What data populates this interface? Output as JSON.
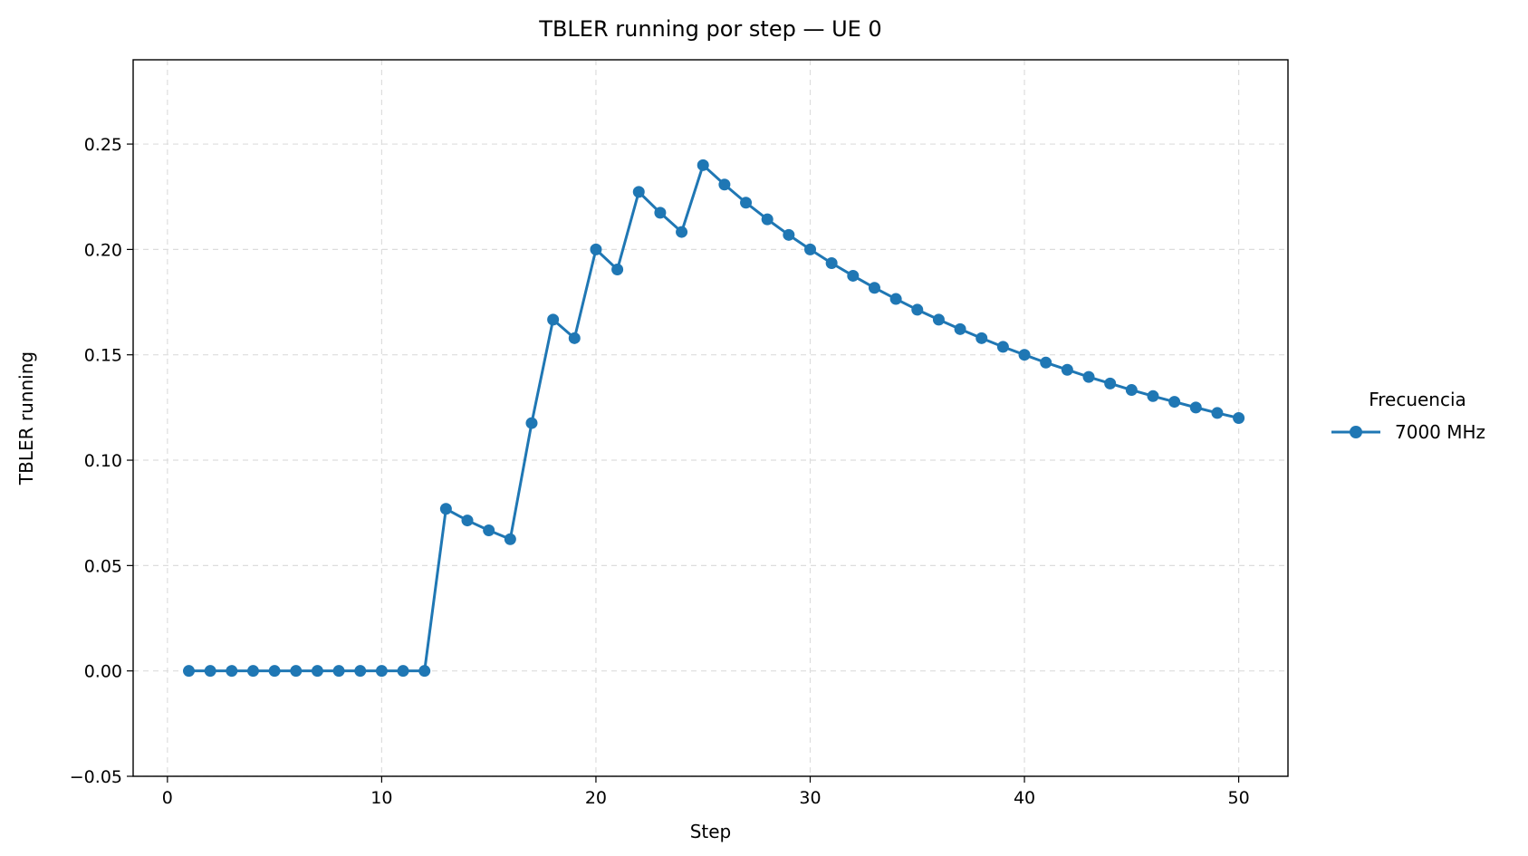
{
  "chart_data": {
    "type": "line",
    "title": "TBLER running por step — UE 0",
    "xlabel": "Step",
    "ylabel": "TBLER running",
    "xlim": [
      -1.6,
      52.3
    ],
    "ylim": [
      -0.05,
      0.29
    ],
    "xticks": [
      0,
      10,
      20,
      30,
      40,
      50
    ],
    "xtick_labels": [
      "0",
      "10",
      "20",
      "30",
      "40",
      "50"
    ],
    "yticks": [
      -0.05,
      0.0,
      0.05,
      0.1,
      0.15,
      0.2,
      0.25
    ],
    "ytick_labels": [
      "−0.05",
      "0.00",
      "0.05",
      "0.10",
      "0.15",
      "0.20",
      "0.25"
    ],
    "grid": true,
    "legend_title": "Frecuencia",
    "legend_position": "right-outside",
    "series": [
      {
        "name": "7000 MHz",
        "color": "#1f77b4",
        "marker": "circle",
        "x": [
          1,
          2,
          3,
          4,
          5,
          6,
          7,
          8,
          9,
          10,
          11,
          12,
          13,
          14,
          15,
          16,
          17,
          18,
          19,
          20,
          21,
          22,
          23,
          24,
          25,
          26,
          27,
          28,
          29,
          30,
          31,
          32,
          33,
          34,
          35,
          36,
          37,
          38,
          39,
          40,
          41,
          42,
          43,
          44,
          45,
          46,
          47,
          48,
          49,
          50
        ],
        "values": [
          0,
          0,
          0,
          0,
          0,
          0,
          0,
          0,
          0,
          0,
          0,
          0,
          0.0769,
          0.0714,
          0.0667,
          0.0625,
          0.1176,
          0.1667,
          0.1579,
          0.2,
          0.1905,
          0.2273,
          0.2174,
          0.2083,
          0.24,
          0.2308,
          0.2222,
          0.2143,
          0.2069,
          0.2,
          0.1935,
          0.1875,
          0.1818,
          0.1765,
          0.1714,
          0.1667,
          0.1622,
          0.1579,
          0.1538,
          0.15,
          0.1463,
          0.1429,
          0.1395,
          0.1364,
          0.1333,
          0.1304,
          0.1277,
          0.125,
          0.1224,
          0.12
        ]
      }
    ]
  }
}
